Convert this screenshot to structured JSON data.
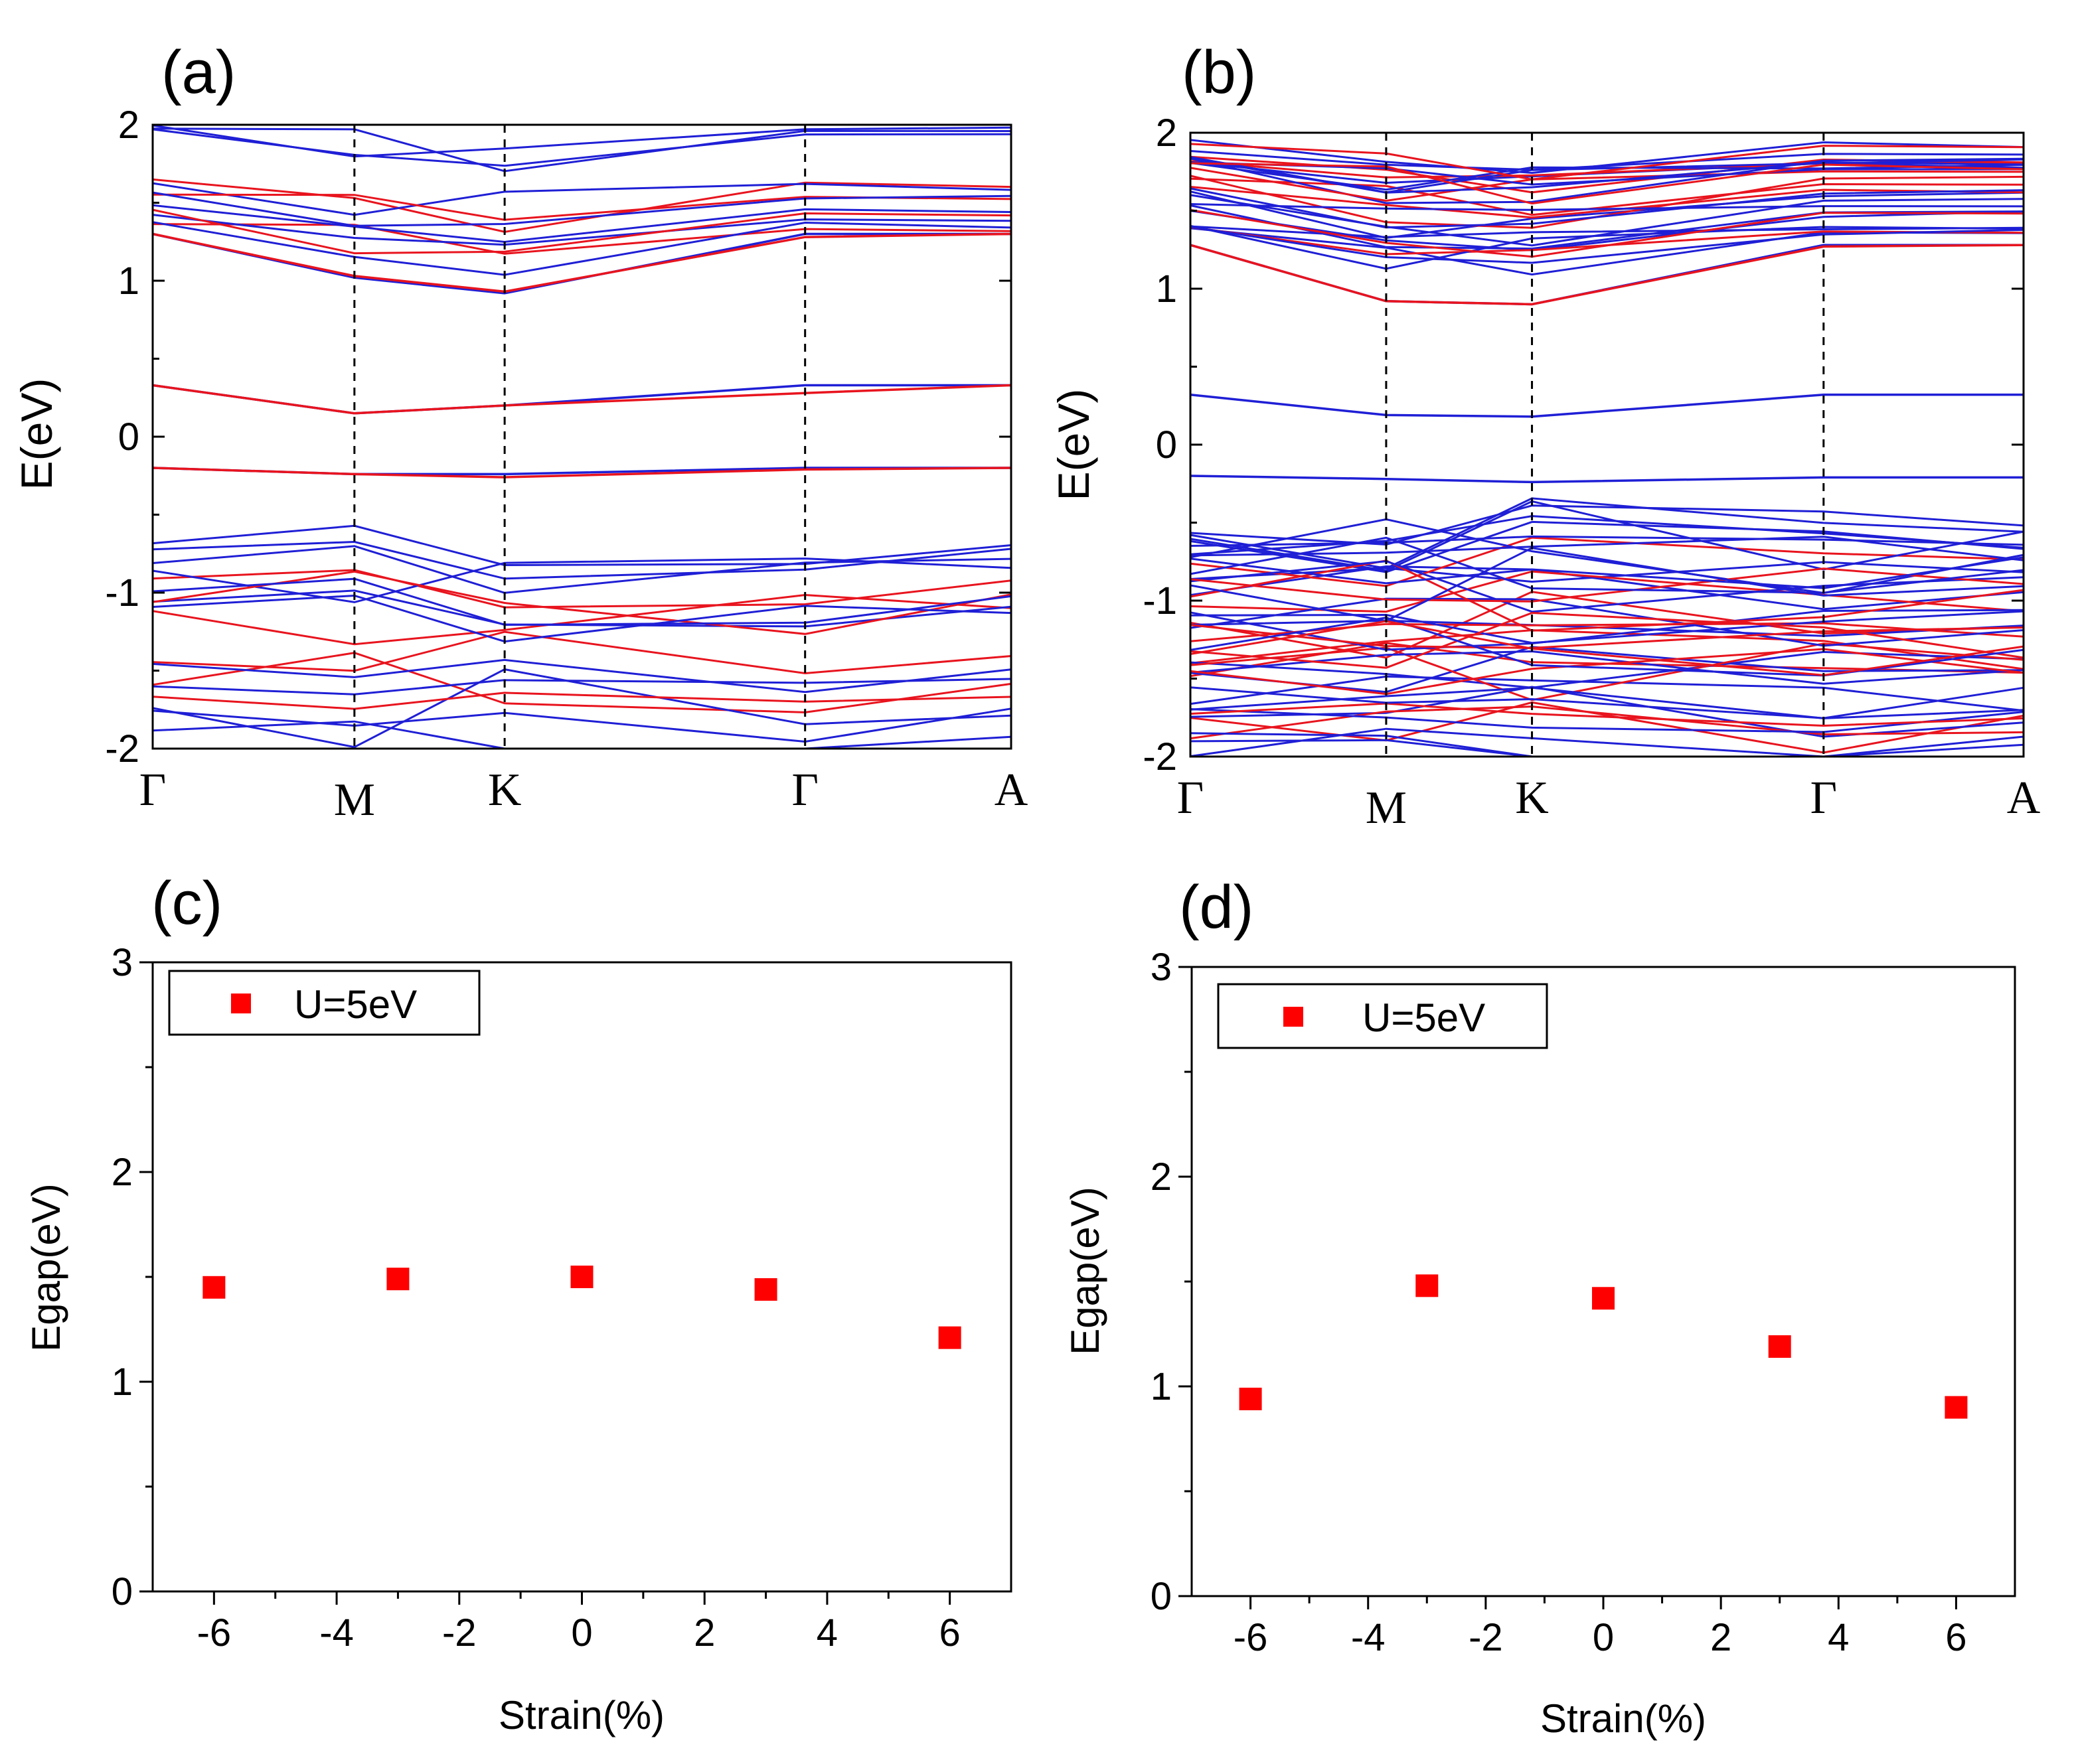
{
  "colors": {
    "band_blue": "#1f1fd6",
    "band_red": "#e8141e",
    "marker": "#ff0000",
    "axis": "#000000"
  },
  "chart_data": [
    {
      "panel": "(a)",
      "type": "line",
      "subtype": "band-structure",
      "ylabel": "E(eV)",
      "xlabel": "",
      "ylim": [
        -2,
        2
      ],
      "yticks": [
        "-2",
        "-1",
        "0",
        "1",
        "2"
      ],
      "kpath": [
        "Γ",
        "M",
        "K",
        "Γ",
        "A"
      ],
      "kpath_fraction": [
        0,
        0.235,
        0.41,
        0.76,
        1.0
      ],
      "dashed_at": [
        "M",
        "K",
        "Γ"
      ],
      "series": [
        {
          "name": "",
          "color": "blue",
          "values": [
            0.33,
            0.15,
            0.2,
            0.33,
            0.33
          ]
        },
        {
          "name": "",
          "color": "blue",
          "values": [
            -0.2,
            -0.24,
            -0.24,
            -0.2,
            -0.2
          ]
        },
        {
          "name": "",
          "color": "red",
          "values": [
            0.33,
            0.15,
            0.2,
            0.28,
            0.33
          ]
        },
        {
          "name": "",
          "color": "red",
          "values": [
            -0.2,
            -0.24,
            -0.26,
            -0.21,
            -0.2
          ]
        },
        {
          "name": "",
          "color": "blue",
          "values": [
            1.3,
            1.02,
            0.92,
            1.3,
            1.3
          ]
        },
        {
          "name": "",
          "color": "red",
          "values": [
            1.3,
            1.03,
            0.93,
            1.28,
            1.3
          ]
        }
      ]
    },
    {
      "panel": "(b)",
      "type": "line",
      "subtype": "band-structure",
      "ylabel": "E(eV)",
      "xlabel": "",
      "ylim": [
        -2,
        2
      ],
      "yticks": [
        "-2",
        "-1",
        "0",
        "1",
        "2"
      ],
      "kpath": [
        "Γ",
        "M",
        "K",
        "Γ",
        "A"
      ],
      "kpath_fraction": [
        0,
        0.235,
        0.41,
        0.76,
        1.0
      ],
      "dashed_at": [
        "M",
        "K",
        "Γ"
      ],
      "series": [
        {
          "name": "",
          "color": "blue",
          "values": [
            0.32,
            0.19,
            0.18,
            0.32,
            0.32
          ]
        },
        {
          "name": "",
          "color": "blue",
          "values": [
            -0.2,
            -0.22,
            -0.24,
            -0.21,
            -0.21
          ]
        },
        {
          "name": "",
          "color": "blue",
          "values": [
            1.28,
            0.92,
            0.9,
            1.28,
            1.28
          ]
        },
        {
          "name": "",
          "color": "red",
          "values": [
            1.28,
            0.92,
            0.9,
            1.27,
            1.28
          ]
        }
      ]
    },
    {
      "panel": "(c)",
      "type": "scatter",
      "xlabel": "Strain(%)",
      "ylabel": "Egap(eV)",
      "xlim": [
        -7,
        7
      ],
      "ylim": [
        0,
        3
      ],
      "xticks": [
        "-6",
        "-4",
        "-2",
        "0",
        "2",
        "4",
        "6"
      ],
      "yticks": [
        "0",
        "1",
        "2",
        "3"
      ],
      "legend": "top-left",
      "series": [
        {
          "name": "U=5eV",
          "x": [
            -6,
            -3,
            0,
            3,
            6
          ],
          "y": [
            1.45,
            1.49,
            1.5,
            1.44,
            1.21
          ]
        }
      ]
    },
    {
      "panel": "(d)",
      "type": "scatter",
      "xlabel": "Strain(%)",
      "ylabel": "Egap(eV)",
      "xlim": [
        -7,
        7
      ],
      "ylim": [
        0,
        3
      ],
      "xticks": [
        "-6",
        "-4",
        "-2",
        "0",
        "2",
        "4",
        "6"
      ],
      "yticks": [
        "0",
        "1",
        "2",
        "3"
      ],
      "legend": "top-left",
      "series": [
        {
          "name": "U=5eV",
          "x": [
            -6,
            -3,
            0,
            3,
            6
          ],
          "y": [
            0.94,
            1.48,
            1.42,
            1.19,
            0.9
          ]
        }
      ]
    }
  ]
}
